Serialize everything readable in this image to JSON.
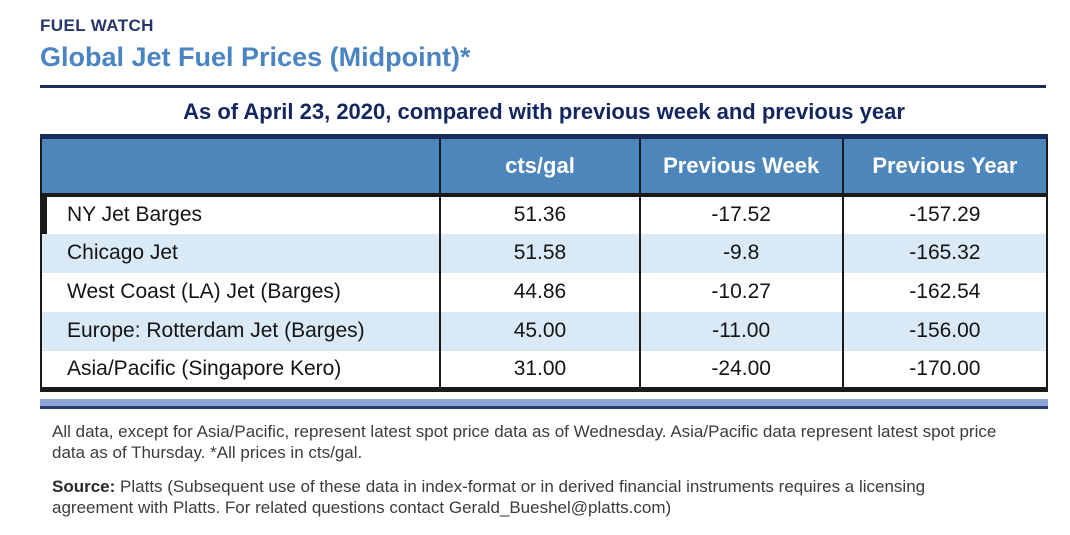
{
  "header": {
    "kicker": "FUEL WATCH",
    "title": "Global Jet Fuel Prices (Midpoint)*"
  },
  "subtitle": "As of April 23, 2020, compared with previous week and previous year",
  "table": {
    "columns": [
      "",
      "cts/gal",
      "Previous Week",
      "Previous Year"
    ],
    "rows": [
      {
        "label": "NY Jet Barges",
        "cts_gal": "51.36",
        "prev_week": "-17.52",
        "prev_year": "-157.29"
      },
      {
        "label": "Chicago Jet",
        "cts_gal": "51.58",
        "prev_week": "-9.8",
        "prev_year": "-165.32"
      },
      {
        "label": "West Coast (LA) Jet (Barges)",
        "cts_gal": "44.86",
        "prev_week": "-10.27",
        "prev_year": "-162.54"
      },
      {
        "label": "Europe: Rotterdam Jet (Barges)",
        "cts_gal": "45.00",
        "prev_week": "-11.00",
        "prev_year": "-156.00"
      },
      {
        "label": "Asia/Pacific (Singapore Kero)",
        "cts_gal": "31.00",
        "prev_week": "-24.00",
        "prev_year": "-170.00"
      }
    ]
  },
  "notes": {
    "footnote": "All data, except for Asia/Pacific, represent latest spot price data as of Wednesday. Asia/Pacific data represent latest spot price data as of Thursday. *All prices in cts/gal.",
    "source_label": "Source:",
    "source_text": " Platts (Subsequent use of these data in index-format or in derived financial instruments requires a licensing agreement with Platts. For related questions contact Gerald_Bueshel@platts.com)"
  },
  "colors": {
    "navy": "#1b2d5f",
    "title_blue": "#4a85c2",
    "header_bg": "#4c86ba",
    "row_alt_blue": "#d9e9f5",
    "bottom_bar": "#8ea6d4",
    "footnote_gray": "#3c3c3c"
  },
  "chart_data": {
    "type": "table",
    "title": "Global Jet Fuel Prices (Midpoint)*",
    "subtitle": "As of April 23, 2020, compared with previous week and previous year",
    "units": "cts/gal",
    "columns": [
      "",
      "cts/gal",
      "Previous Week",
      "Previous Year"
    ],
    "rows": [
      [
        "NY Jet Barges",
        51.36,
        -17.52,
        -157.29
      ],
      [
        "Chicago Jet",
        51.58,
        -9.8,
        -165.32
      ],
      [
        "West Coast (LA) Jet (Barges)",
        44.86,
        -10.27,
        -162.54
      ],
      [
        "Europe: Rotterdam Jet (Barges)",
        45.0,
        -11.0,
        -156.0
      ],
      [
        "Asia/Pacific (Singapore Kero)",
        31.0,
        -24.0,
        -170.0
      ]
    ]
  }
}
